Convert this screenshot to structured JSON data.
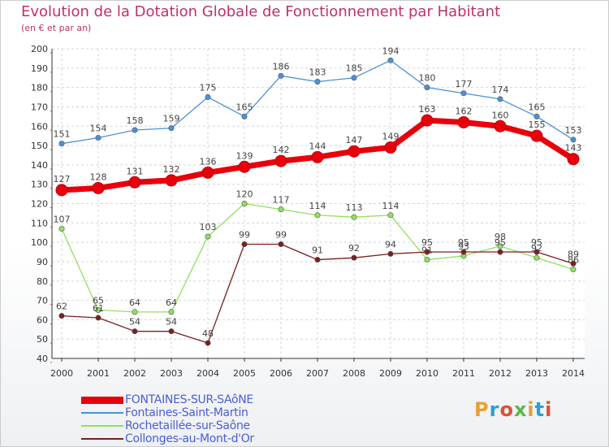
{
  "title": "Evolution de la Dotation Globale de Fonctionnement par Habitant",
  "subtitle": "(en € et par an)",
  "logo": {
    "text": "Proxiti",
    "colors": [
      "#e8a030",
      "#2aa0d8",
      "#e05030",
      "#58b848",
      "#e8a030",
      "#2aa0d8",
      "#e05030"
    ]
  },
  "chart_data": {
    "type": "line",
    "title": "Evolution de la Dotation Globale de Fonctionnement par Habitant",
    "subtitle": "(en € et par an)",
    "xlabel": "",
    "ylabel": "",
    "x": [
      "2000",
      "2001",
      "2002",
      "2003",
      "2004",
      "2005",
      "2006",
      "2007",
      "2008",
      "2009",
      "2010",
      "2011",
      "2012",
      "2013",
      "2014"
    ],
    "ylim": [
      40,
      200
    ],
    "yticks": [
      40,
      50,
      60,
      70,
      80,
      90,
      100,
      110,
      120,
      130,
      140,
      150,
      160,
      170,
      180,
      190,
      200
    ],
    "grid": true,
    "series": [
      {
        "name": "FONTAINES-SUR-SAôNE",
        "color": "#e8000b",
        "emphasis": true,
        "values": [
          127,
          128,
          131,
          132,
          136,
          139,
          142,
          144,
          147,
          149,
          163,
          162,
          160,
          155,
          143
        ]
      },
      {
        "name": "Fontaines-Saint-Martin",
        "color": "#4a90d9",
        "emphasis": false,
        "values": [
          151,
          154,
          158,
          159,
          175,
          165,
          186,
          183,
          185,
          194,
          180,
          177,
          174,
          165,
          153
        ]
      },
      {
        "name": "Rochetaillée-sur-Saône",
        "color": "#90e060",
        "emphasis": false,
        "values": [
          107,
          65,
          64,
          64,
          103,
          120,
          117,
          114,
          113,
          114,
          91,
          93,
          98,
          92,
          86
        ]
      },
      {
        "name": "Collonges-au-Mont-d'Or",
        "color": "#7a1f1f",
        "emphasis": false,
        "values": [
          62,
          61,
          54,
          54,
          48,
          99,
          99,
          91,
          92,
          94,
          95,
          95,
          95,
          95,
          89
        ]
      }
    ]
  }
}
